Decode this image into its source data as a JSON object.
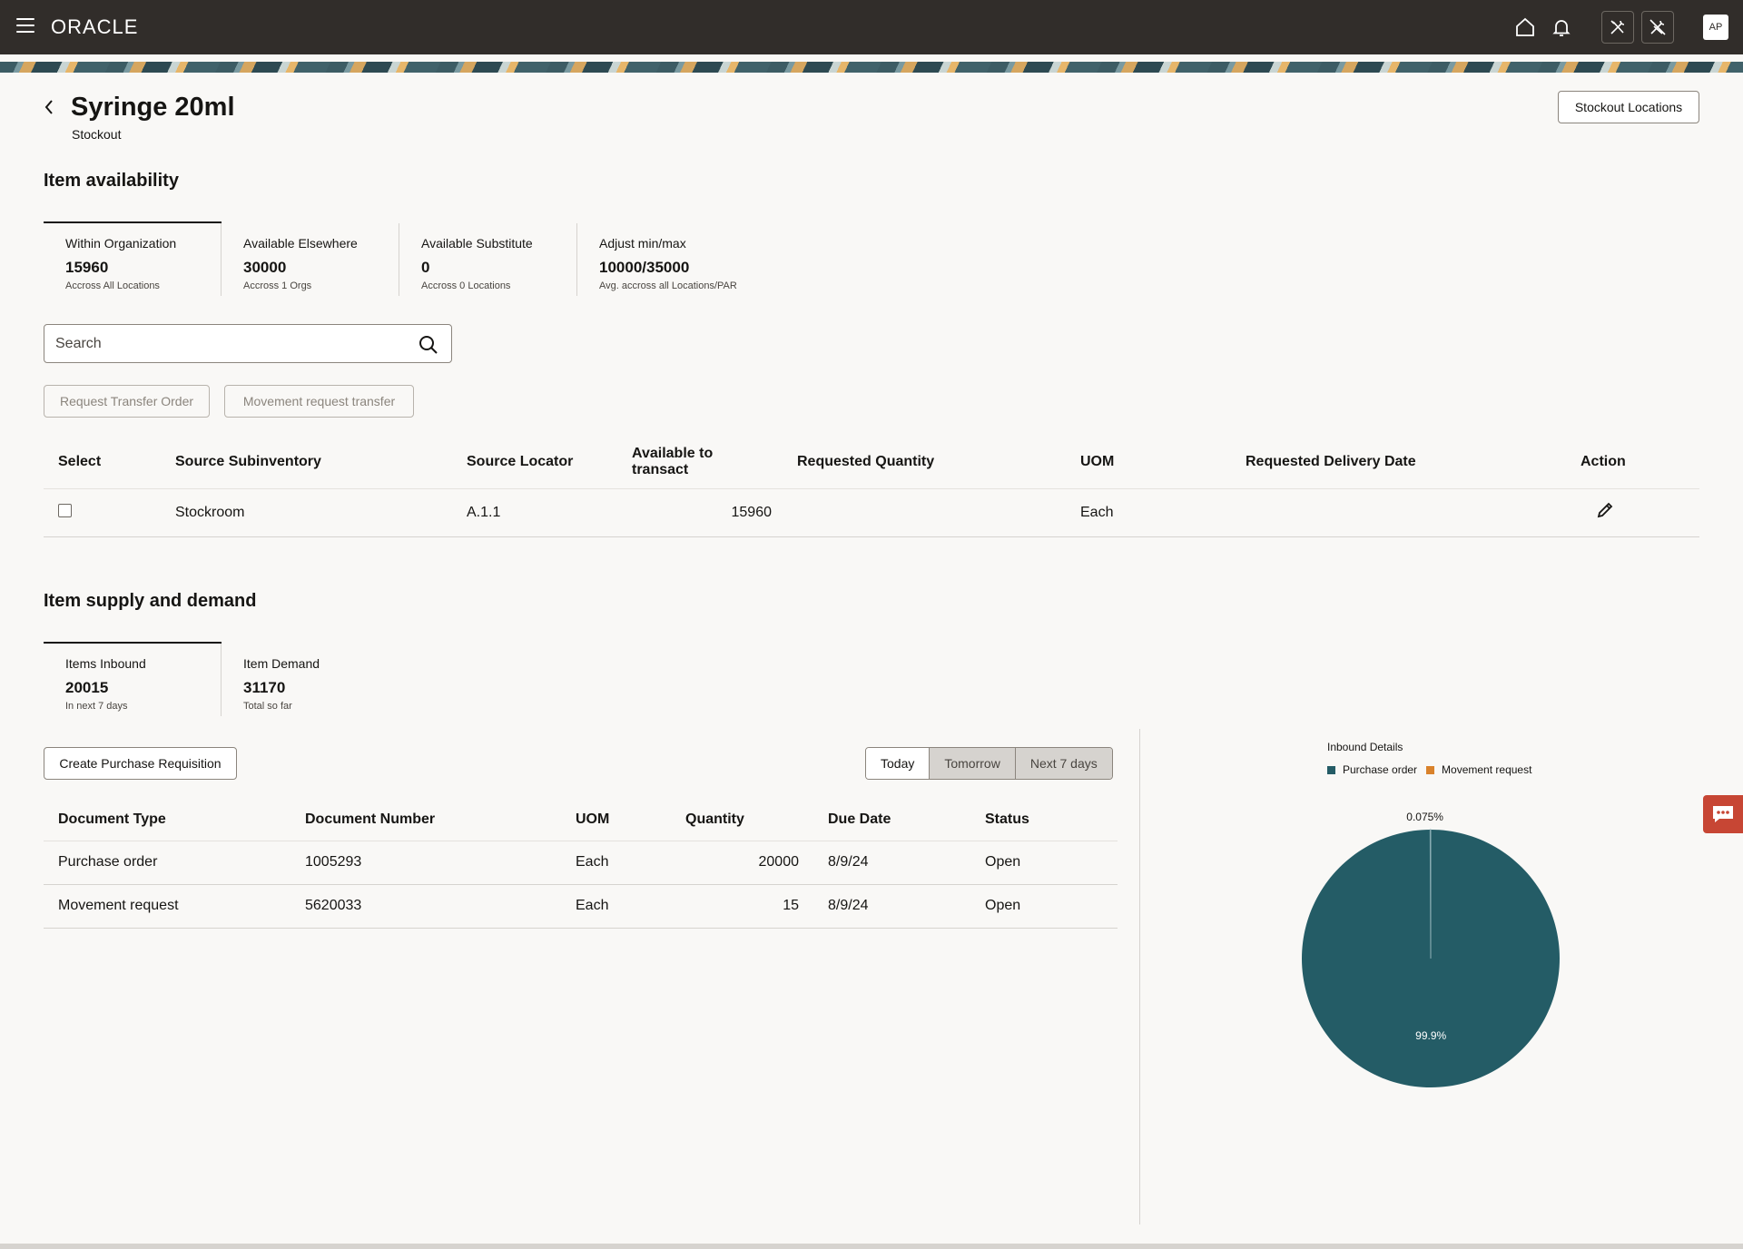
{
  "header": {
    "logo": "ORACLE",
    "avatar_initials": "AP",
    "icons": [
      "menu-icon",
      "home-icon",
      "bell-icon",
      "tools-icon",
      "tools-off-icon"
    ]
  },
  "page": {
    "title": "Syringe 20ml",
    "subtitle": "Stockout",
    "stockout_locations_button": "Stockout Locations"
  },
  "availability": {
    "title": "Item availability",
    "stats": [
      {
        "label": "Within Organization",
        "value": "15960",
        "sub": "Accross All Locations"
      },
      {
        "label": "Available Elsewhere",
        "value": "30000",
        "sub": "Accross 1 Orgs"
      },
      {
        "label": "Available Substitute",
        "value": "0",
        "sub": "Accross 0 Locations"
      },
      {
        "label": "Adjust min/max",
        "value": "10000/35000",
        "sub": "Avg. accross all Locations/PAR"
      }
    ],
    "search_placeholder": "Search",
    "request_transfer_button": "Request Transfer Order",
    "movement_request_button": "Movement request transfer",
    "columns": {
      "select": "Select",
      "source_subinventory": "Source Subinventory",
      "source_locator": "Source Locator",
      "available_line1": "Available to",
      "available_line2": "transact",
      "requested_quantity": "Requested Quantity",
      "uom": "UOM",
      "requested_delivery_date": "Requested Delivery Date",
      "action": "Action"
    },
    "rows": [
      {
        "subinventory": "Stockroom",
        "locator": "A.1.1",
        "available": "15960",
        "requested_quantity": "",
        "uom": "Each",
        "delivery_date": ""
      }
    ]
  },
  "supply": {
    "title": "Item supply and demand",
    "stats": [
      {
        "label": "Items Inbound",
        "value": "20015",
        "sub": "In next 7 days"
      },
      {
        "label": "Item Demand",
        "value": "31170",
        "sub": "Total so far"
      }
    ],
    "create_requisition_button": "Create Purchase Requisition",
    "segments": [
      "Today",
      "Tomorrow",
      "Next 7 days"
    ],
    "columns": {
      "document_type": "Document Type",
      "document_number": "Document Number",
      "uom": "UOM",
      "quantity": "Quantity",
      "due_date": "Due Date",
      "status": "Status"
    },
    "rows": [
      {
        "document_type": "Purchase order",
        "document_number": "1005293",
        "uom": "Each",
        "quantity": "20000",
        "due_date": "8/9/24",
        "status": "Open"
      },
      {
        "document_type": "Movement request",
        "document_number": "5620033",
        "uom": "Each",
        "quantity": "15",
        "due_date": "8/9/24",
        "status": "Open"
      }
    ]
  },
  "chart_data": {
    "type": "pie",
    "title": "Inbound Details",
    "legend_position": "top-left",
    "slices": [
      {
        "name": "Purchase order",
        "value": 20000,
        "label": "99.9%",
        "color": "#245c66"
      },
      {
        "name": "Movement request",
        "value": 15,
        "label": "0.075%",
        "color": "#d9822b"
      }
    ]
  },
  "colors": {
    "header_bg": "#312d2a",
    "chat_button": "#c74634"
  }
}
